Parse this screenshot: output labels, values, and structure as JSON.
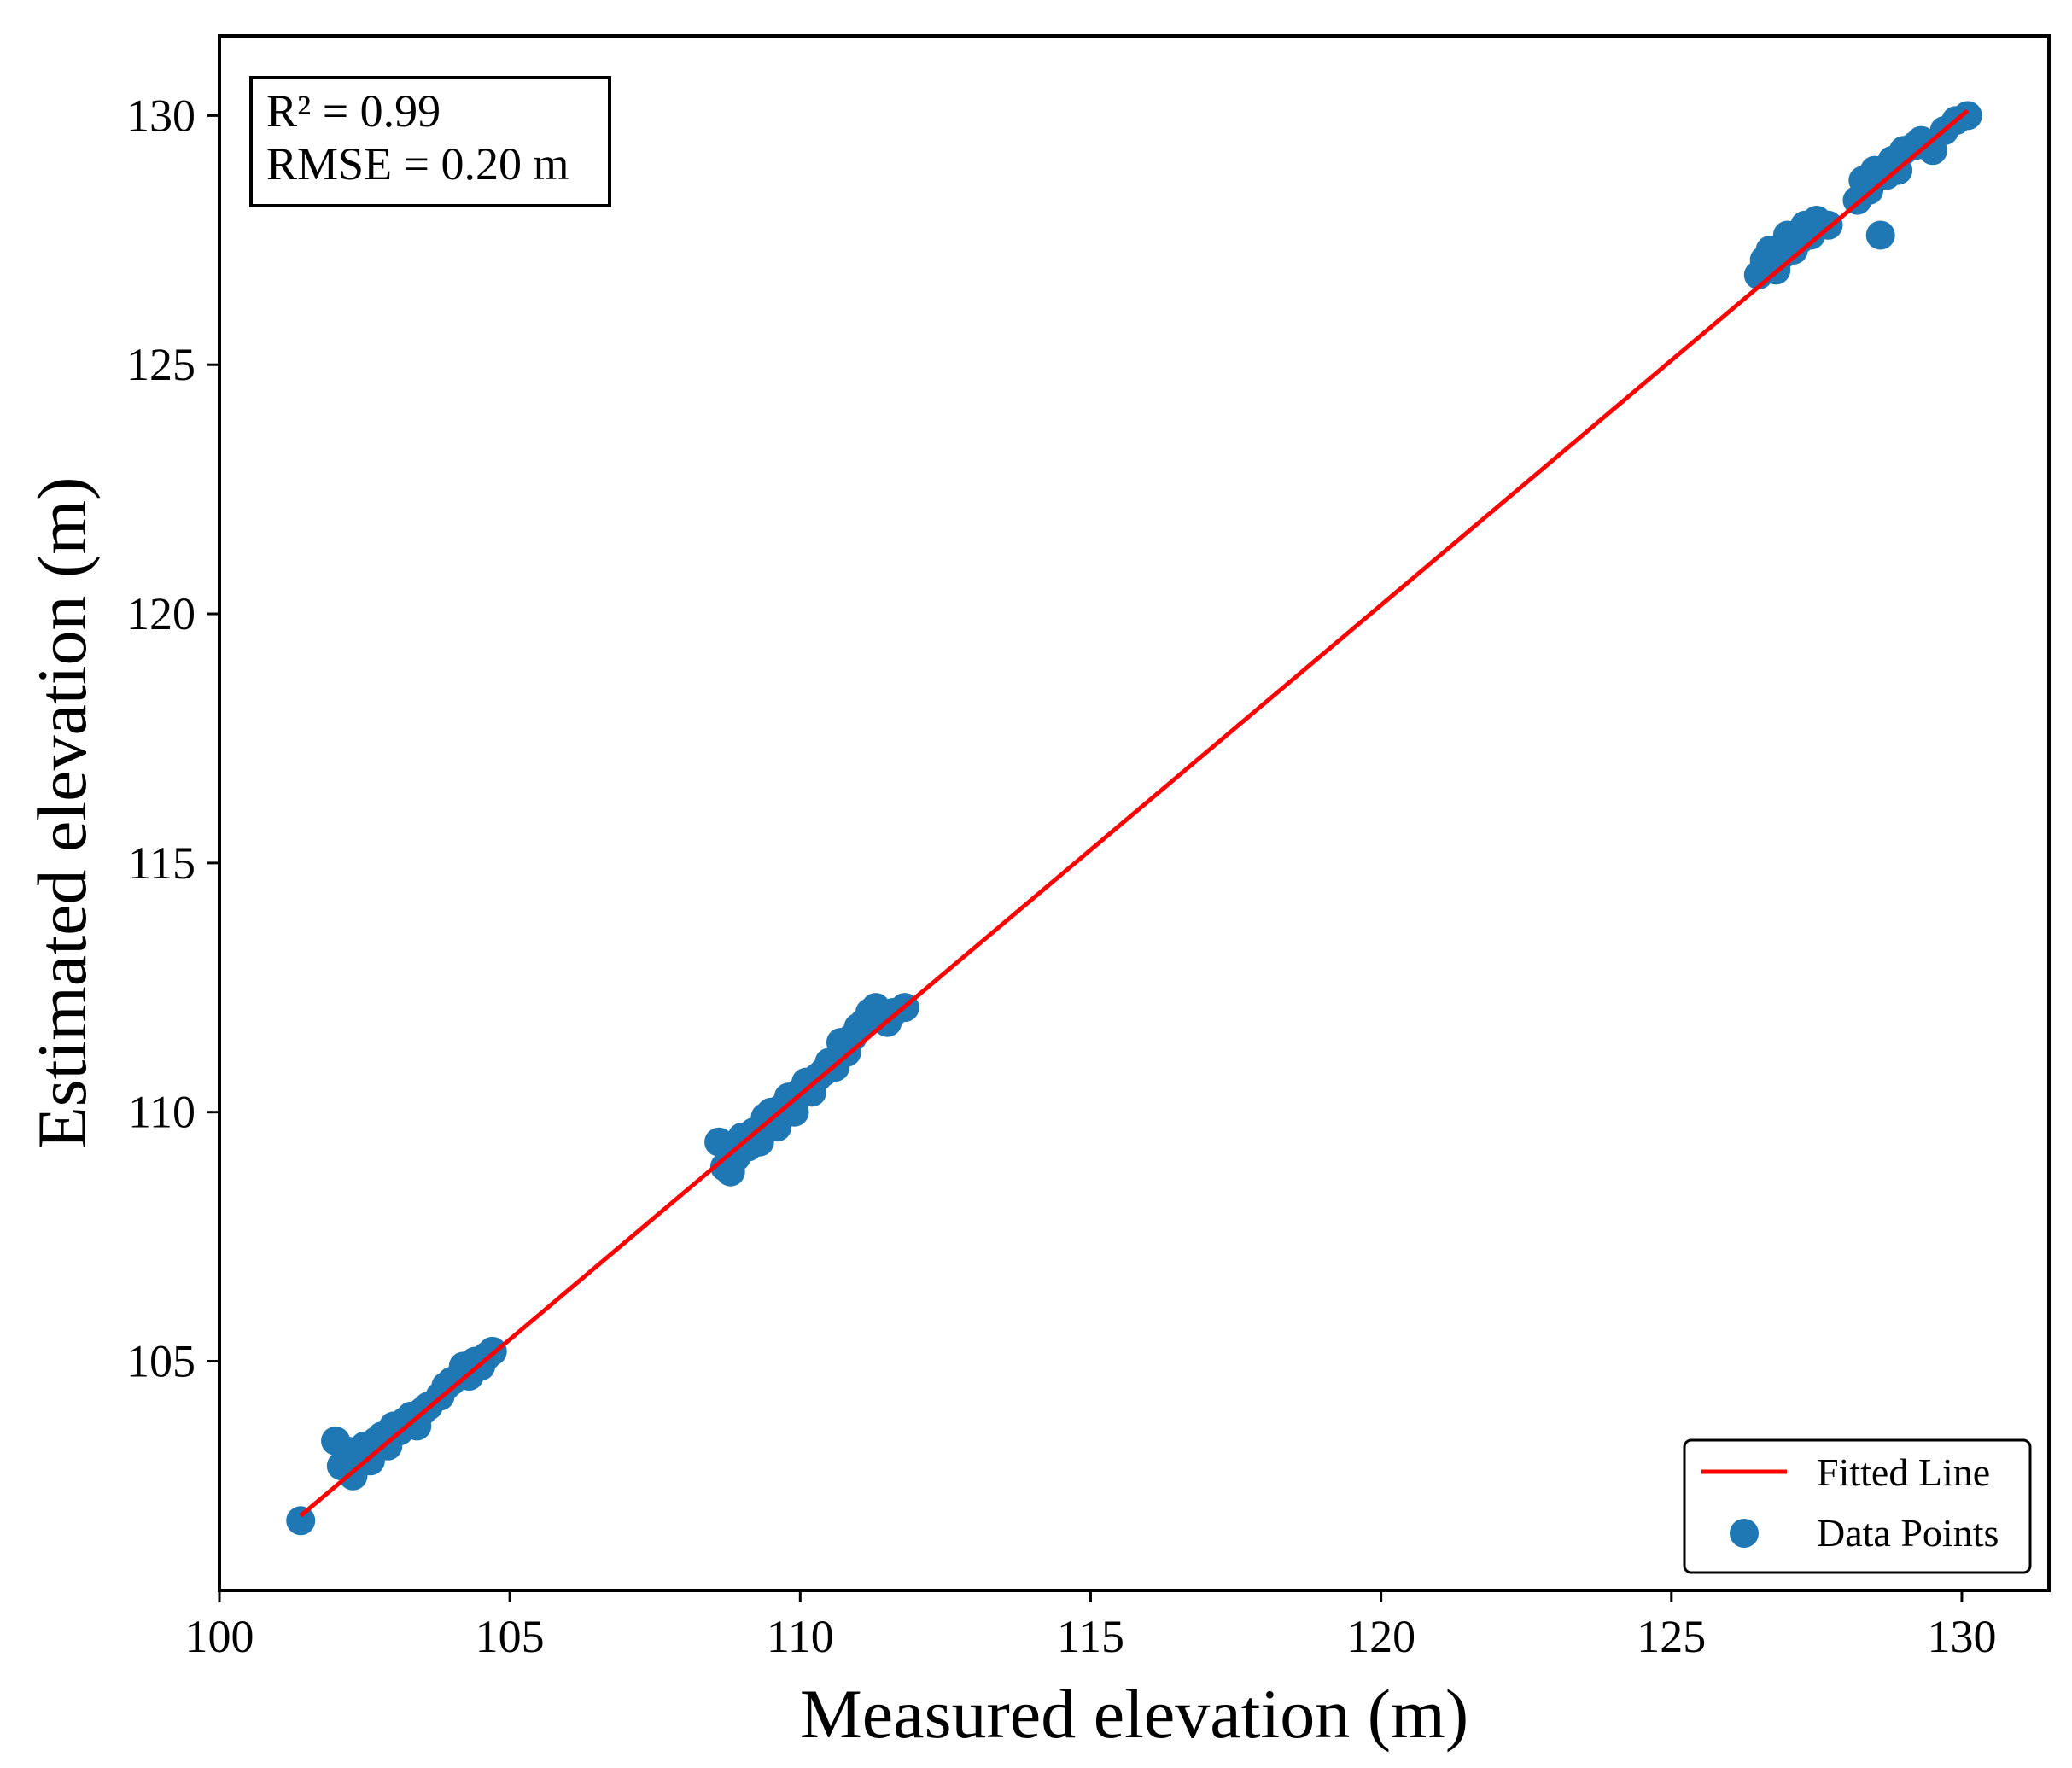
{
  "chart_data": {
    "type": "scatter",
    "title": "",
    "xlabel": "Measured elevation (m)",
    "ylabel": "Estimated elevation (m)",
    "xlim": [
      100,
      131.5
    ],
    "ylim": [
      100.4,
      131.6
    ],
    "xticks": [
      100,
      105,
      110,
      115,
      120,
      125,
      130
    ],
    "yticks": [
      105,
      110,
      115,
      120,
      125,
      130
    ],
    "grid": false,
    "annotation": {
      "lines": [
        "R² = 0.99",
        "RMSE = 0.20 m"
      ],
      "placement": "top-left"
    },
    "legend": {
      "placement": "bottom-right",
      "entries": [
        "Fitted Line",
        "Data Points"
      ]
    },
    "colors": {
      "points": "#1f77b4",
      "fitted_line": "#ff0000"
    },
    "fitted_line": {
      "name": "Fitted Line",
      "x": [
        101.4,
        130.1
      ],
      "y": [
        101.9,
        130.1
      ]
    },
    "series": [
      {
        "name": "Data Points",
        "x": [
          101.4,
          102.0,
          102.1,
          102.2,
          102.3,
          102.4,
          102.5,
          102.6,
          102.7,
          102.8,
          102.9,
          103.0,
          103.1,
          103.2,
          103.3,
          103.4,
          103.5,
          103.6,
          103.8,
          103.9,
          104.0,
          104.2,
          104.3,
          104.4,
          104.5,
          104.6,
          104.7,
          108.6,
          108.7,
          108.8,
          108.9,
          109.0,
          109.1,
          109.2,
          109.3,
          109.4,
          109.5,
          109.6,
          109.7,
          109.8,
          109.9,
          110.0,
          110.1,
          110.2,
          110.3,
          110.4,
          110.5,
          110.6,
          110.7,
          110.8,
          110.9,
          111.0,
          111.1,
          111.2,
          111.3,
          111.4,
          111.5,
          111.6,
          111.8,
          126.5,
          126.6,
          126.7,
          126.8,
          126.9,
          127.0,
          127.1,
          127.2,
          127.3,
          127.4,
          127.5,
          127.7,
          128.2,
          128.3,
          128.4,
          128.5,
          128.6,
          128.7,
          128.8,
          128.9,
          129.0,
          129.2,
          129.3,
          129.5,
          129.7,
          129.9,
          130.1
        ],
        "y": [
          101.8,
          103.4,
          102.9,
          103.2,
          102.7,
          103.1,
          103.3,
          103.0,
          103.4,
          103.5,
          103.3,
          103.7,
          103.6,
          103.8,
          103.9,
          103.7,
          104.0,
          104.1,
          104.3,
          104.5,
          104.6,
          104.9,
          104.7,
          105.0,
          104.9,
          105.1,
          105.2,
          109.4,
          108.9,
          108.8,
          109.1,
          109.5,
          109.3,
          109.6,
          109.4,
          109.9,
          110.0,
          109.7,
          110.1,
          110.3,
          110.0,
          110.4,
          110.6,
          110.4,
          110.7,
          110.8,
          111.0,
          110.9,
          111.4,
          111.2,
          111.5,
          111.7,
          111.8,
          112.0,
          112.1,
          111.9,
          111.8,
          112.0,
          112.1,
          126.8,
          127.1,
          127.3,
          126.9,
          127.2,
          127.6,
          127.3,
          127.5,
          127.8,
          127.6,
          127.9,
          127.8,
          128.3,
          128.7,
          128.5,
          128.9,
          127.6,
          128.8,
          129.1,
          128.9,
          129.3,
          129.4,
          129.5,
          129.3,
          129.7,
          129.9,
          130.0
        ]
      }
    ]
  }
}
